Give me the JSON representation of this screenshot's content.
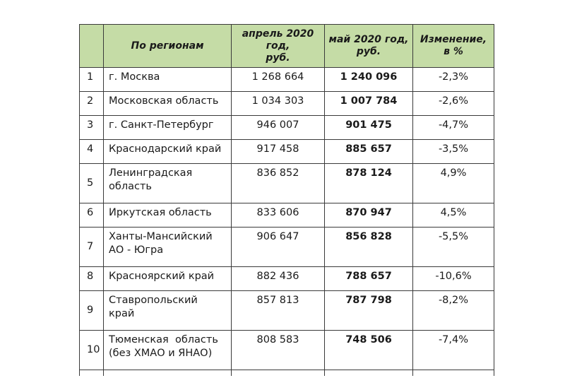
{
  "table": {
    "headers": {
      "region": "По регионам",
      "april_lines": [
        "апрель 2020",
        "год,",
        "руб."
      ],
      "may_lines": [
        "май 2020 год,",
        "руб."
      ],
      "change_lines": [
        "Изменение,",
        "в %"
      ]
    },
    "header_bg_color": "#c5dca6",
    "rows": [
      {
        "num": "1",
        "region_lines": [
          "г. Москва"
        ],
        "april": "1 268 664",
        "may": "1 240 096",
        "change": "-2,3%"
      },
      {
        "num": "2",
        "region_lines": [
          "Московская область"
        ],
        "april": "1 034 303",
        "may": "1 007 784",
        "change": "-2,6%"
      },
      {
        "num": "3",
        "region_lines": [
          "г. Санкт-Петербург"
        ],
        "april": "946 007",
        "may": "901 475",
        "change": "-4,7%"
      },
      {
        "num": "4",
        "region_lines": [
          "Краснодарский край"
        ],
        "april": "917 458",
        "may": "885 657",
        "change": "-3,5%"
      },
      {
        "num": "5",
        "region_lines": [
          "Ленинградская",
          "область"
        ],
        "april": "836 852",
        "may": "878 124",
        "change": "4,9%"
      },
      {
        "num": "6",
        "region_lines": [
          "Иркутская область"
        ],
        "april": "833 606",
        "may": "870 947",
        "change": "4,5%"
      },
      {
        "num": "7",
        "region_lines": [
          "Ханты-Мансийский",
          "АО - Югра"
        ],
        "april": "906 647",
        "may": "856 828",
        "change": "-5,5%"
      },
      {
        "num": "8",
        "region_lines": [
          "Красноярский край"
        ],
        "april": "882 436",
        "may": "788 657",
        "change": "-10,6%"
      },
      {
        "num": "9",
        "region_lines": [
          "Ставропольский",
          "край"
        ],
        "april": "857 813",
        "may": "787 798",
        "change": "-8,2%"
      },
      {
        "num": "10",
        "region_lines": [
          "Тюменская  область",
          "(без ХМАО и ЯНАО)"
        ],
        "april": "808 583",
        "may": "748 506",
        "change": "-7,4%"
      }
    ]
  }
}
